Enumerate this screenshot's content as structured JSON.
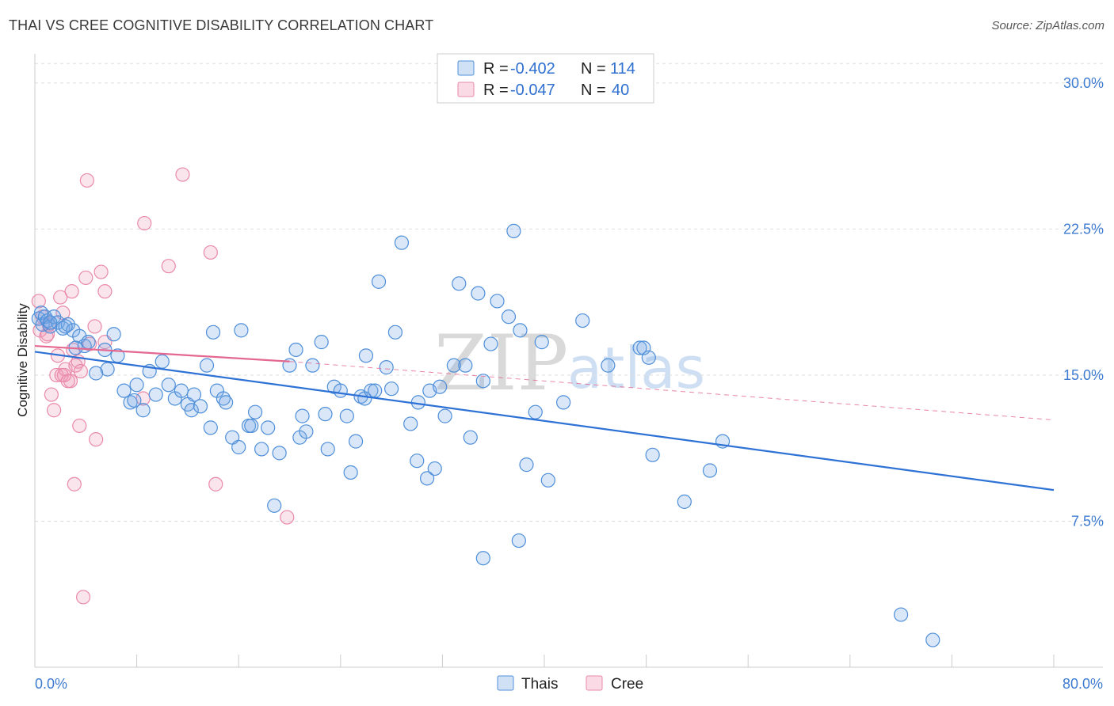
{
  "title": "THAI VS CREE COGNITIVE DISABILITY CORRELATION CHART",
  "source": "Source: ZipAtlas.com",
  "watermark": {
    "zip": "ZIP",
    "atlas": "atlas"
  },
  "colors": {
    "thai_fill": "rgba(120,170,230,0.28)",
    "thai_stroke": "#4f8fd9",
    "cree_fill": "rgba(240,150,180,0.25)",
    "cree_stroke": "#e98aaa",
    "thai_line": "#2f72d6",
    "cree_line": "#e4688f",
    "grid": "#dddddd",
    "tick_text": "#3d7bd0"
  },
  "legend": {
    "r_label": "R =",
    "n_label": "N =",
    "items": [
      {
        "r": "-0.402",
        "n": "114"
      },
      {
        "r": "-0.047",
        "n": "40"
      }
    ]
  },
  "chart_data": {
    "type": "scatter",
    "title": "THAI VS CREE COGNITIVE DISABILITY CORRELATION CHART",
    "xlabel": "",
    "ylabel": "Cognitive Disability",
    "xlim": [
      0,
      80
    ],
    "ylim": [
      0,
      31.5
    ],
    "x_tick_labels": [
      "0.0%",
      "80.0%"
    ],
    "y_ticks": [
      7.5,
      15.0,
      22.5,
      30.0
    ],
    "y_tick_labels": [
      "7.5%",
      "15.0%",
      "22.5%",
      "30.0%"
    ],
    "grid": "horizontal dashed",
    "legend_position": "top-center and bottom",
    "series": [
      {
        "name": "Thais",
        "r": -0.402,
        "n": 114,
        "trend": {
          "x": [
            0,
            80
          ],
          "y": [
            16.2,
            9.1
          ]
        },
        "points": [
          [
            0.3,
            17.9
          ],
          [
            0.5,
            18.2
          ],
          [
            0.6,
            17.6
          ],
          [
            0.8,
            18.0
          ],
          [
            1.0,
            17.8
          ],
          [
            1.2,
            17.5
          ],
          [
            1.5,
            18.0
          ],
          [
            1.8,
            17.7
          ],
          [
            2.2,
            17.4
          ],
          [
            2.6,
            17.6
          ],
          [
            3.0,
            17.3
          ],
          [
            3.5,
            17.0
          ],
          [
            3.9,
            16.5
          ],
          [
            4.2,
            16.7
          ],
          [
            5.5,
            16.3
          ],
          [
            6.5,
            16.0
          ],
          [
            5.7,
            15.3
          ],
          [
            7.0,
            14.2
          ],
          [
            7.5,
            13.6
          ],
          [
            8.5,
            13.2
          ],
          [
            9.5,
            14.0
          ],
          [
            10.0,
            15.7
          ],
          [
            10.5,
            14.5
          ],
          [
            11.0,
            13.8
          ],
          [
            11.5,
            14.2
          ],
          [
            12.0,
            13.5
          ],
          [
            12.3,
            13.2
          ],
          [
            12.5,
            14.0
          ],
          [
            13.0,
            13.4
          ],
          [
            13.5,
            15.5
          ],
          [
            13.8,
            12.3
          ],
          [
            14.3,
            14.2
          ],
          [
            14.8,
            13.8
          ],
          [
            15.0,
            13.6
          ],
          [
            15.5,
            11.8
          ],
          [
            16.0,
            11.3
          ],
          [
            16.8,
            12.4
          ],
          [
            17.0,
            12.4
          ],
          [
            17.3,
            13.1
          ],
          [
            17.8,
            11.2
          ],
          [
            18.3,
            12.3
          ],
          [
            18.8,
            8.3
          ],
          [
            19.2,
            11.0
          ],
          [
            20.0,
            15.5
          ],
          [
            20.5,
            16.3
          ],
          [
            20.8,
            11.8
          ],
          [
            21.0,
            12.9
          ],
          [
            21.3,
            12.1
          ],
          [
            21.8,
            15.5
          ],
          [
            22.5,
            16.7
          ],
          [
            22.8,
            13.0
          ],
          [
            23.0,
            11.2
          ],
          [
            23.5,
            14.4
          ],
          [
            24.0,
            14.2
          ],
          [
            24.5,
            12.9
          ],
          [
            24.8,
            10.0
          ],
          [
            25.2,
            11.6
          ],
          [
            25.6,
            13.9
          ],
          [
            25.9,
            13.8
          ],
          [
            26.4,
            14.2
          ],
          [
            26.7,
            14.2
          ],
          [
            27.0,
            19.8
          ],
          [
            27.6,
            15.4
          ],
          [
            28.0,
            14.3
          ],
          [
            28.3,
            17.2
          ],
          [
            28.8,
            21.8
          ],
          [
            29.5,
            12.5
          ],
          [
            30.0,
            10.6
          ],
          [
            30.1,
            13.6
          ],
          [
            30.8,
            9.7
          ],
          [
            31.0,
            14.2
          ],
          [
            31.4,
            10.2
          ],
          [
            31.8,
            14.4
          ],
          [
            32.2,
            12.9
          ],
          [
            32.9,
            15.5
          ],
          [
            33.3,
            19.7
          ],
          [
            33.8,
            15.5
          ],
          [
            34.2,
            11.8
          ],
          [
            34.8,
            19.2
          ],
          [
            35.2,
            14.7
          ],
          [
            35.8,
            16.6
          ],
          [
            36.3,
            18.8
          ],
          [
            37.2,
            18.0
          ],
          [
            37.6,
            22.4
          ],
          [
            38.1,
            17.3
          ],
          [
            38.6,
            10.4
          ],
          [
            38.0,
            6.5
          ],
          [
            39.3,
            13.1
          ],
          [
            39.8,
            16.7
          ],
          [
            40.3,
            9.6
          ],
          [
            41.5,
            13.6
          ],
          [
            43.0,
            17.8
          ],
          [
            45.0,
            15.5
          ],
          [
            47.5,
            16.4
          ],
          [
            47.8,
            16.4
          ],
          [
            48.2,
            15.9
          ],
          [
            48.5,
            10.9
          ],
          [
            51.0,
            8.5
          ],
          [
            53.0,
            10.1
          ],
          [
            54.0,
            11.6
          ],
          [
            68.0,
            2.7
          ],
          [
            70.5,
            1.4
          ],
          [
            26.0,
            16.0
          ],
          [
            14.0,
            17.2
          ],
          [
            16.2,
            17.3
          ],
          [
            9.0,
            15.2
          ],
          [
            6.2,
            17.1
          ],
          [
            8.0,
            14.5
          ],
          [
            35.2,
            5.6
          ],
          [
            4.8,
            15.1
          ],
          [
            7.8,
            13.7
          ],
          [
            2.4,
            17.5
          ],
          [
            3.2,
            16.4
          ],
          [
            1.2,
            17.7
          ]
        ]
      },
      {
        "name": "Cree",
        "r": -0.047,
        "n": 40,
        "trend": {
          "x": [
            0,
            20
          ],
          "y": [
            16.5,
            15.7
          ],
          "dashed_to": {
            "x": 80,
            "y": 12.7
          }
        },
        "points": [
          [
            0.3,
            18.8
          ],
          [
            0.4,
            17.3
          ],
          [
            0.6,
            18.0
          ],
          [
            0.9,
            17.0
          ],
          [
            1.1,
            17.6
          ],
          [
            1.3,
            14.0
          ],
          [
            1.5,
            13.2
          ],
          [
            1.7,
            15.0
          ],
          [
            1.8,
            16.0
          ],
          [
            2.0,
            19.0
          ],
          [
            2.1,
            15.0
          ],
          [
            2.2,
            18.2
          ],
          [
            2.4,
            15.3
          ],
          [
            2.6,
            14.7
          ],
          [
            2.8,
            14.7
          ],
          [
            2.9,
            19.3
          ],
          [
            3.0,
            16.3
          ],
          [
            3.2,
            15.5
          ],
          [
            3.4,
            15.7
          ],
          [
            3.5,
            12.4
          ],
          [
            3.6,
            15.2
          ],
          [
            3.8,
            3.6
          ],
          [
            4.0,
            20.0
          ],
          [
            4.1,
            25.0
          ],
          [
            4.3,
            16.6
          ],
          [
            4.7,
            17.5
          ],
          [
            4.8,
            11.7
          ],
          [
            5.2,
            20.3
          ],
          [
            5.5,
            16.7
          ],
          [
            5.5,
            19.3
          ],
          [
            8.5,
            13.8
          ],
          [
            8.6,
            22.8
          ],
          [
            10.5,
            20.6
          ],
          [
            11.6,
            25.3
          ],
          [
            13.8,
            21.3
          ],
          [
            14.2,
            9.4
          ],
          [
            19.8,
            7.7
          ],
          [
            3.1,
            9.4
          ],
          [
            1.0,
            17.1
          ],
          [
            2.3,
            15.0
          ]
        ]
      }
    ]
  },
  "bottom_legend": [
    "Thais",
    "Cree"
  ]
}
